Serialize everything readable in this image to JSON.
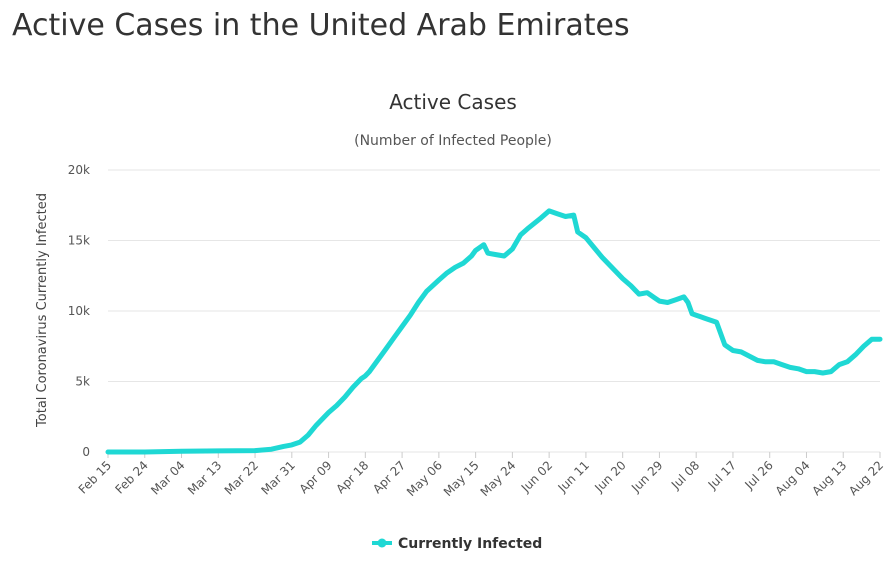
{
  "page": {
    "title": "Active Cases in the United Arab Emirates"
  },
  "chart_data": {
    "type": "line",
    "title": "Active Cases",
    "subtitle": "(Number of Infected People)",
    "xlabel": "",
    "ylabel": "Total Coronavirus Currently Infected",
    "ylim": [
      0,
      20000
    ],
    "y_ticks": [
      0,
      5000,
      10000,
      15000,
      20000
    ],
    "y_tick_labels": [
      "0",
      "5k",
      "10k",
      "15k",
      "20k"
    ],
    "x_tick_labels": [
      "Feb 15",
      "Feb 24",
      "Mar 04",
      "Mar 13",
      "Mar 22",
      "Mar 31",
      "Apr 09",
      "Apr 18",
      "Apr 27",
      "May 06",
      "May 15",
      "May 24",
      "Jun 02",
      "Jun 11",
      "Jun 20",
      "Jun 29",
      "Jul 08",
      "Jul 17",
      "Jul 26",
      "Aug 04",
      "Aug 13",
      "Aug 22"
    ],
    "x_tick_day_index": [
      0,
      9,
      18,
      27,
      36,
      45,
      54,
      63,
      72,
      81,
      90,
      99,
      108,
      117,
      126,
      135,
      144,
      153,
      162,
      171,
      180,
      189
    ],
    "x_range": [
      0,
      189
    ],
    "grid": true,
    "legend_position": "bottom-center",
    "series": [
      {
        "name": "Currently Infected",
        "color": "#1fd8d4",
        "x": [
          0,
          9,
          18,
          27,
          36,
          40,
          43,
          45,
          47,
          49,
          51,
          54,
          56,
          58,
          60,
          62,
          63,
          64,
          66,
          68,
          70,
          72,
          74,
          76,
          78,
          81,
          83,
          85,
          87,
          89,
          90,
          91,
          92,
          93,
          95,
          97,
          99,
          101,
          103,
          106,
          108,
          110,
          112,
          114,
          115,
          117,
          119,
          121,
          123,
          126,
          128,
          130,
          132,
          134,
          135,
          137,
          139,
          141,
          142,
          143,
          144,
          145,
          146,
          147,
          149,
          151,
          152,
          153,
          155,
          157,
          159,
          161,
          163,
          165,
          167,
          169,
          171,
          173,
          175,
          177,
          179,
          181,
          183,
          185,
          187,
          189
        ],
        "y": [
          0,
          0,
          50,
          80,
          100,
          200,
          400,
          500,
          700,
          1200,
          1900,
          2800,
          3300,
          3900,
          4600,
          5200,
          5400,
          5700,
          6500,
          7300,
          8100,
          8900,
          9700,
          10600,
          11400,
          12200,
          12700,
          13100,
          13400,
          13900,
          14300,
          14500,
          14700,
          14100,
          14000,
          13900,
          14400,
          15400,
          15900,
          16600,
          17100,
          16900,
          16700,
          16800,
          15600,
          15200,
          14500,
          13800,
          13200,
          12300,
          11800,
          11200,
          11300,
          10900,
          10700,
          10600,
          10800,
          11000,
          10600,
          9800,
          9700,
          9600,
          9500,
          9400,
          9200,
          7600,
          7400,
          7200,
          7100,
          6800,
          6500,
          6400,
          6400,
          6200,
          6000,
          5900,
          5700,
          5700,
          5600,
          5700,
          6200,
          6400,
          6900,
          7500,
          8000,
          8000
        ]
      }
    ]
  }
}
